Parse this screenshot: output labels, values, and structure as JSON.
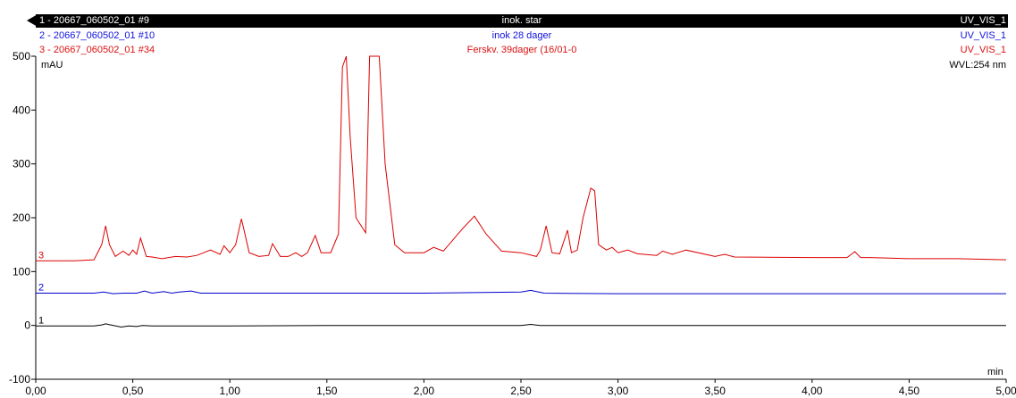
{
  "chart_data": {
    "type": "line",
    "xlabel": "min",
    "ylabel": "mAU",
    "annotation": "WVL:254 nm",
    "xlim": [
      0,
      5
    ],
    "ylim": [
      -100,
      500
    ],
    "x_ticks": [
      "0,00",
      "0,50",
      "1,00",
      "1,50",
      "2,00",
      "2,50",
      "3,00",
      "3,50",
      "4,00",
      "4,50",
      "5,00"
    ],
    "y_ticks": [
      "-100",
      "0",
      "100",
      "200",
      "300",
      "400",
      "500"
    ],
    "series": [
      {
        "name": "1 - 20667_060502_01 #9",
        "label": "1",
        "sample": "inok. star",
        "channel": "UV_VIS_1",
        "color": "#000000",
        "x": [
          0,
          0.3,
          0.34,
          0.36,
          0.4,
          0.44,
          0.48,
          0.52,
          0.55,
          0.6,
          1.0,
          1.5,
          2.5,
          2.55,
          2.6,
          5.0
        ],
        "y": [
          -1,
          -1,
          1,
          3,
          0,
          -3,
          -1,
          -2,
          0,
          -1,
          -1,
          0,
          0,
          2,
          0,
          0
        ]
      },
      {
        "name": "2 - 20667_060502_01 #10",
        "label": "2",
        "sample": "inok 28 dager",
        "channel": "UV_VIS_1",
        "color": "#0000cc",
        "x": [
          0,
          0.3,
          0.35,
          0.4,
          0.45,
          0.52,
          0.56,
          0.6,
          0.66,
          0.7,
          0.74,
          0.8,
          0.85,
          1.0,
          2.0,
          2.5,
          2.55,
          2.62,
          3.0,
          5.0
        ],
        "y": [
          60,
          60,
          62,
          59,
          60,
          60,
          64,
          60,
          63,
          60,
          62,
          64,
          60,
          60,
          60,
          62,
          65,
          60,
          59,
          59
        ]
      },
      {
        "name": "3 - 20667_060502_01 #34",
        "label": "3",
        "sample": "Ferskv. 39dager (16/01-0",
        "channel": "UV_VIS_1",
        "color": "#dd0000",
        "x": [
          0,
          0.2,
          0.3,
          0.34,
          0.36,
          0.38,
          0.41,
          0.45,
          0.48,
          0.5,
          0.52,
          0.54,
          0.57,
          0.6,
          0.65,
          0.72,
          0.78,
          0.83,
          0.9,
          0.95,
          0.97,
          1.0,
          1.03,
          1.06,
          1.1,
          1.15,
          1.2,
          1.22,
          1.26,
          1.3,
          1.34,
          1.37,
          1.4,
          1.44,
          1.47,
          1.52,
          1.56,
          1.58,
          1.6,
          1.62,
          1.65,
          1.7,
          1.72,
          1.77,
          1.8,
          1.85,
          1.9,
          2.0,
          2.05,
          2.1,
          2.2,
          2.26,
          2.32,
          2.4,
          2.5,
          2.58,
          2.6,
          2.63,
          2.66,
          2.7,
          2.74,
          2.76,
          2.79,
          2.82,
          2.86,
          2.88,
          2.9,
          2.94,
          2.97,
          3.0,
          3.05,
          3.1,
          3.2,
          3.23,
          3.28,
          3.35,
          3.5,
          3.55,
          3.6,
          4.0,
          4.18,
          4.22,
          4.25,
          4.3,
          4.5,
          4.75,
          5.0
        ],
        "y": [
          120,
          120,
          122,
          150,
          185,
          150,
          128,
          138,
          130,
          140,
          132,
          162,
          128,
          127,
          124,
          128,
          127,
          130,
          140,
          132,
          148,
          135,
          150,
          198,
          135,
          128,
          130,
          152,
          128,
          128,
          135,
          128,
          135,
          167,
          135,
          135,
          170,
          480,
          520,
          350,
          200,
          172,
          520,
          520,
          300,
          150,
          135,
          135,
          145,
          138,
          180,
          203,
          170,
          138,
          135,
          128,
          140,
          185,
          135,
          133,
          177,
          135,
          140,
          200,
          255,
          250,
          150,
          140,
          145,
          135,
          140,
          133,
          130,
          138,
          132,
          140,
          128,
          132,
          127,
          126,
          126,
          137,
          126,
          126,
          124,
          124,
          122
        ]
      }
    ]
  }
}
